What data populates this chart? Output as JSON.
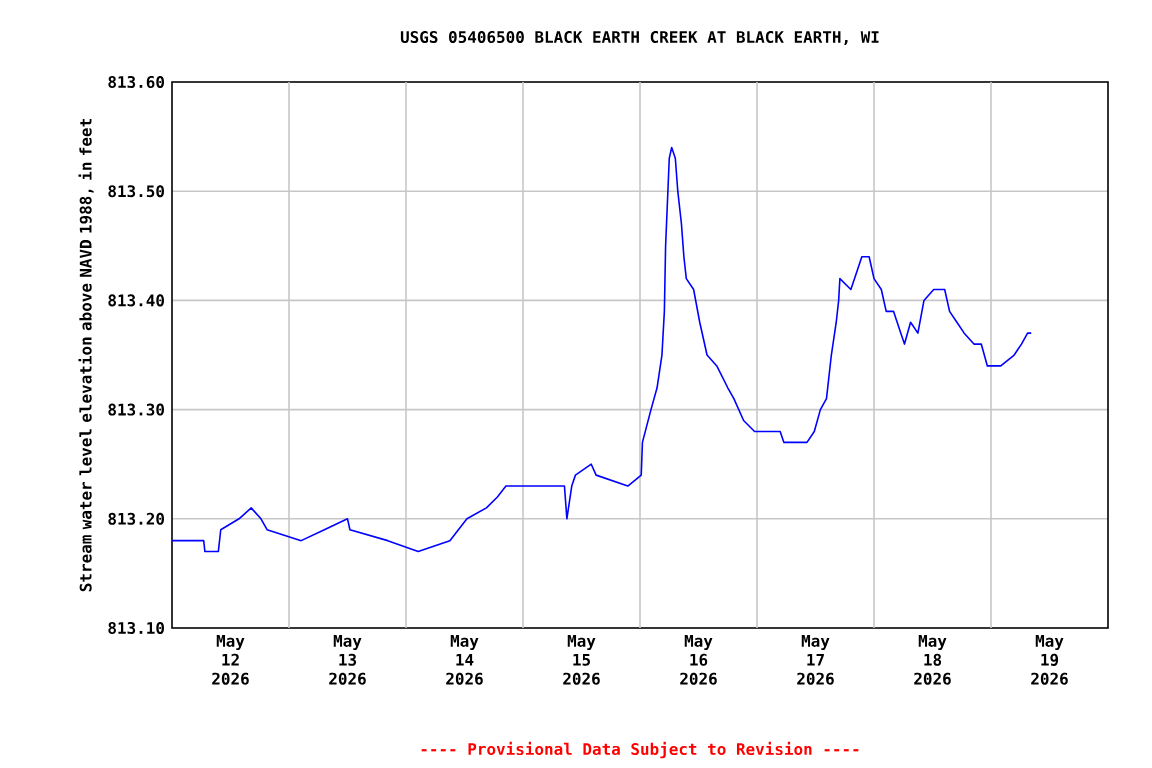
{
  "chart_data": {
    "type": "line",
    "title": "USGS 05406500 BLACK EARTH CREEK AT BLACK EARTH, WI",
    "ylabel": "Stream water level elevation above NAVD 1988, in feet",
    "annotations": [
      "---- Provisional Data Subject to Revision ----"
    ],
    "x": [
      "2026-05-12T00:00",
      "2026-05-12T06:30",
      "2026-05-12T06:45",
      "2026-05-12T09:30",
      "2026-05-12T10:00",
      "2026-05-12T13:45",
      "2026-05-12T16:15",
      "2026-05-12T18:15",
      "2026-05-12T19:30",
      "2026-05-13T02:30",
      "2026-05-13T07:15",
      "2026-05-13T12:00",
      "2026-05-13T12:30",
      "2026-05-13T20:15",
      "2026-05-14T02:30",
      "2026-05-14T09:00",
      "2026-05-14T12:30",
      "2026-05-14T16:30",
      "2026-05-14T18:45",
      "2026-05-14T20:30",
      "2026-05-15T08:30",
      "2026-05-15T09:00",
      "2026-05-15T10:00",
      "2026-05-15T10:45",
      "2026-05-15T14:00",
      "2026-05-15T15:00",
      "2026-05-15T21:30",
      "2026-05-16T00:15",
      "2026-05-16T00:30",
      "2026-05-16T02:15",
      "2026-05-16T03:30",
      "2026-05-16T04:30",
      "2026-05-16T05:00",
      "2026-05-16T05:15",
      "2026-05-16T06:00",
      "2026-05-16T06:30",
      "2026-05-16T07:15",
      "2026-05-16T07:45",
      "2026-05-16T08:30",
      "2026-05-16T09:00",
      "2026-05-16T09:30",
      "2026-05-16T11:00",
      "2026-05-16T12:15",
      "2026-05-16T13:45",
      "2026-05-16T15:45",
      "2026-05-16T18:00",
      "2026-05-16T19:15",
      "2026-05-16T21:15",
      "2026-05-16T23:30",
      "2026-05-17T04:45",
      "2026-05-17T05:30",
      "2026-05-17T10:15",
      "2026-05-17T11:45",
      "2026-05-17T13:00",
      "2026-05-17T14:15",
      "2026-05-17T15:15",
      "2026-05-17T16:15",
      "2026-05-17T16:45",
      "2026-05-17T17:00",
      "2026-05-17T19:15",
      "2026-05-17T20:45",
      "2026-05-17T21:30",
      "2026-05-17T23:00",
      "2026-05-18T00:00",
      "2026-05-18T01:30",
      "2026-05-18T02:30",
      "2026-05-18T04:00",
      "2026-05-18T05:30",
      "2026-05-18T06:15",
      "2026-05-18T07:30",
      "2026-05-18T09:00",
      "2026-05-18T10:15",
      "2026-05-18T12:15",
      "2026-05-18T14:30",
      "2026-05-18T15:30",
      "2026-05-18T17:00",
      "2026-05-18T18:30",
      "2026-05-18T20:30",
      "2026-05-18T22:00",
      "2026-05-18T23:15",
      "2026-05-19T02:00",
      "2026-05-19T04:45",
      "2026-05-19T06:15",
      "2026-05-19T07:30",
      "2026-05-19T08:15"
    ],
    "series": [
      {
        "color": "#0000ff",
        "values": [
          813.18,
          813.18,
          813.17,
          813.17,
          813.19,
          813.2,
          813.21,
          813.2,
          813.19,
          813.18,
          813.19,
          813.2,
          813.19,
          813.18,
          813.17,
          813.18,
          813.2,
          813.21,
          813.22,
          813.23,
          813.23,
          813.2,
          813.23,
          813.24,
          813.25,
          813.24,
          813.23,
          813.24,
          813.27,
          813.3,
          813.32,
          813.35,
          813.39,
          813.45,
          813.53,
          813.54,
          813.53,
          813.5,
          813.47,
          813.44,
          813.42,
          813.41,
          813.38,
          813.35,
          813.34,
          813.32,
          813.31,
          813.29,
          813.28,
          813.28,
          813.27,
          813.27,
          813.28,
          813.3,
          813.31,
          813.35,
          813.38,
          813.4,
          813.42,
          813.41,
          813.43,
          813.44,
          813.44,
          813.42,
          813.41,
          813.39,
          813.39,
          813.37,
          813.36,
          813.38,
          813.37,
          813.4,
          813.41,
          813.41,
          813.39,
          813.38,
          813.37,
          813.36,
          813.36,
          813.34,
          813.34,
          813.35,
          813.36,
          813.37,
          813.37
        ]
      }
    ],
    "xlim": [
      "2026-05-12T00:00",
      "2026-05-20T00:00"
    ],
    "xticks": [
      {
        "value": "2026-05-12T12:00",
        "label": "May 12 2026"
      },
      {
        "value": "2026-05-13T12:00",
        "label": "May 13 2026"
      },
      {
        "value": "2026-05-14T12:00",
        "label": "May 14 2026"
      },
      {
        "value": "2026-05-15T12:00",
        "label": "May 15 2026"
      },
      {
        "value": "2026-05-16T12:00",
        "label": "May 16 2026"
      },
      {
        "value": "2026-05-17T12:00",
        "label": "May 17 2026"
      },
      {
        "value": "2026-05-18T12:00",
        "label": "May 18 2026"
      },
      {
        "value": "2026-05-19T12:00",
        "label": "May 19 2026"
      },
      {
        "value": "2026-05-13T00:00",
        "label": null
      },
      {
        "value": "2026-05-14T00:00",
        "label": null
      },
      {
        "value": "2026-05-15T00:00",
        "label": null
      },
      {
        "value": "2026-05-16T00:00",
        "label": null
      },
      {
        "value": "2026-05-17T00:00",
        "label": null
      },
      {
        "value": "2026-05-18T00:00",
        "label": null
      },
      {
        "value": "2026-05-19T00:00",
        "label": null
      }
    ],
    "ylim": [
      813.1,
      813.6
    ],
    "yticks": [
      {
        "value": 813.1,
        "label": "813.10"
      },
      {
        "value": 813.2,
        "label": "813.20"
      },
      {
        "value": 813.3,
        "label": "813.30"
      },
      {
        "value": 813.4,
        "label": "813.40"
      },
      {
        "value": 813.5,
        "label": "813.50"
      },
      {
        "value": 813.6,
        "label": "813.60"
      }
    ],
    "grid": true
  }
}
